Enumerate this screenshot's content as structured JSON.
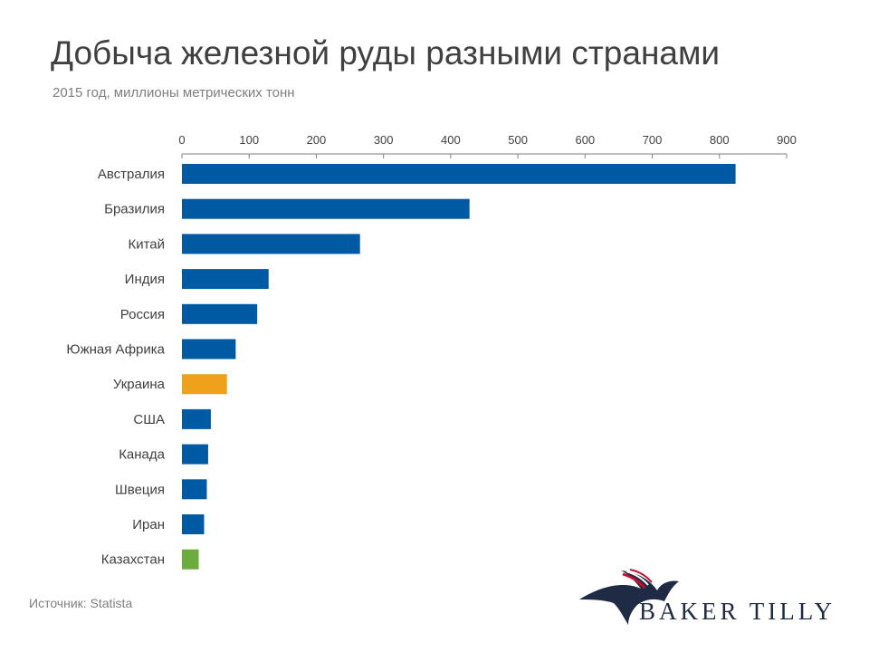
{
  "title": "Добыча железной руды разными странами",
  "subtitle": "2015 год, миллионы метрических тонн",
  "source": "Источник: Statista",
  "logo_text": "BAKER TILLY",
  "colors": {
    "default_bar": "#005aa3",
    "highlight_ukraine": "#f0a11b",
    "highlight_kazakhstan": "#6aac3e",
    "axis": "#7f7f7f"
  },
  "chart_data": {
    "type": "bar",
    "orientation": "horizontal",
    "title": "Добыча железной руды разными странами",
    "subtitle": "2015 год, миллионы метрических тонн",
    "xlim": [
      0,
      900
    ],
    "xticks": [
      0,
      100,
      200,
      300,
      400,
      500,
      600,
      700,
      800,
      900
    ],
    "axis_position": "top",
    "grid": false,
    "legend": "none",
    "categories": [
      "Австралия",
      "Бразилия",
      "Китай",
      "Индия",
      "Россия",
      "Южная Африка",
      "Украина",
      "США",
      "Канада",
      "Швеция",
      "Иран",
      "Казахстан"
    ],
    "values": [
      824,
      428,
      265,
      129,
      112,
      80,
      67,
      43,
      39,
      37,
      33,
      25
    ],
    "bar_colors": [
      "#005aa3",
      "#005aa3",
      "#005aa3",
      "#005aa3",
      "#005aa3",
      "#005aa3",
      "#f0a11b",
      "#005aa3",
      "#005aa3",
      "#005aa3",
      "#005aa3",
      "#6aac3e"
    ]
  }
}
